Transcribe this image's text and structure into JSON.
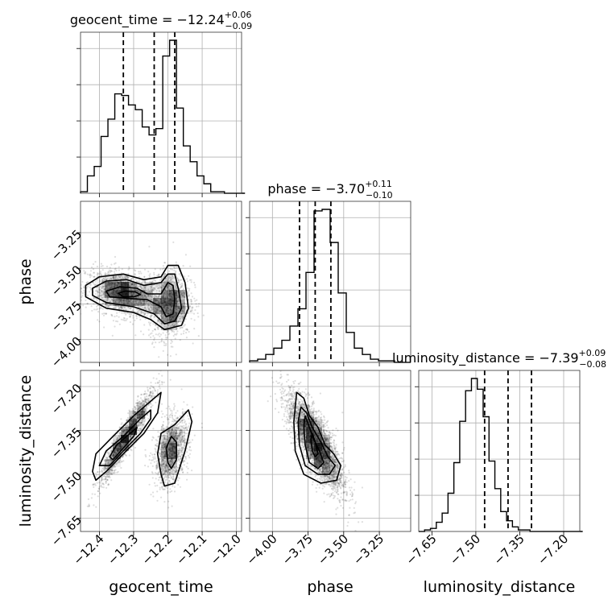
{
  "chart_data": {
    "type": "corner",
    "parameters": [
      {
        "name": "geocent_time",
        "axis_label": "geocent_time",
        "range": [
          -12.455,
          -11.985
        ],
        "ticks": [
          -12.4,
          -12.3,
          -12.2,
          -12.1,
          -12.0
        ],
        "tick_labels": [
          "−12.4",
          "−12.3",
          "−12.2",
          "−12.1",
          "−12.0"
        ],
        "title_main": "geocent_time = −12.24",
        "title_sup": "+0.06",
        "title_sub": "−0.09",
        "quantiles": [
          -12.33,
          -12.24,
          -12.18
        ],
        "hist_edges_start": -12.455,
        "hist_bin_width": 0.02,
        "hist_counts": [
          0.01,
          0.11,
          0.17,
          0.36,
          0.47,
          0.63,
          0.62,
          0.56,
          0.53,
          0.42,
          0.37,
          0.41,
          0.87,
          0.97,
          0.54,
          0.3,
          0.2,
          0.11,
          0.06,
          0.01,
          0.01,
          0.0,
          0.0,
          0.0
        ]
      },
      {
        "name": "phase",
        "axis_label": "phase",
        "range": [
          -4.16,
          -3.03
        ],
        "ticks": [
          -4.0,
          -3.75,
          -3.5,
          -3.25
        ],
        "tick_labels": [
          "−4.00",
          "−3.75",
          "−3.50",
          "−3.25"
        ],
        "title_main": "phase = −3.70",
        "title_sup": "+0.11",
        "title_sub": "−0.10",
        "quantiles": [
          -3.81,
          -3.7,
          -3.59
        ],
        "hist_edges_start": -4.16,
        "hist_bin_width": 0.0565,
        "hist_counts": [
          0.01,
          0.02,
          0.05,
          0.09,
          0.14,
          0.23,
          0.34,
          0.57,
          0.96,
          0.97,
          0.76,
          0.44,
          0.19,
          0.09,
          0.05,
          0.02,
          0.01,
          0.01,
          0.0,
          0.0
        ]
      },
      {
        "name": "luminosity_distance",
        "axis_label": "luminosity_distance",
        "range": [
          -7.695,
          -7.145
        ],
        "ticks": [
          -7.65,
          -7.5,
          -7.35,
          -7.2
        ],
        "tick_labels": [
          "−7.65",
          "−7.50",
          "−7.35",
          "−7.20"
        ],
        "title_main": "luminosity_distance = −7.39",
        "title_sup": "+0.09",
        "title_sub": "−0.08",
        "quantiles": [
          -7.47,
          -7.39,
          -7.31
        ],
        "hist_edges_start": -7.695,
        "hist_bin_width": 0.02,
        "hist_counts": [
          0.0,
          0.01,
          0.02,
          0.06,
          0.12,
          0.25,
          0.45,
          0.72,
          0.92,
          1.0,
          0.93,
          0.75,
          0.46,
          0.28,
          0.13,
          0.07,
          0.03,
          0.01,
          0.01,
          0.0,
          0.0,
          0.0,
          0.0,
          0.0,
          0.0,
          0.0,
          0.0,
          0.0
        ]
      }
    ],
    "pairs": [
      {
        "x": 0,
        "y": 1,
        "blobs": [
          {
            "mx": -12.33,
            "my": -3.68,
            "sx": 0.055,
            "sy": 0.08,
            "rho": -0.3,
            "weight": 0.55
          },
          {
            "mx": -12.195,
            "my": -3.75,
            "sx": 0.03,
            "sy": 0.12,
            "rho": 0.1,
            "weight": 0.45
          }
        ],
        "contours": [
          [
            [
              -12.44,
              -3.62
            ],
            [
              -12.4,
              -3.56
            ],
            [
              -12.33,
              -3.54
            ],
            [
              -12.27,
              -3.58
            ],
            [
              -12.22,
              -3.56
            ],
            [
              -12.2,
              -3.48
            ],
            [
              -12.17,
              -3.48
            ],
            [
              -12.15,
              -3.6
            ],
            [
              -12.14,
              -3.78
            ],
            [
              -12.16,
              -3.9
            ],
            [
              -12.21,
              -3.93
            ],
            [
              -12.25,
              -3.86
            ],
            [
              -12.3,
              -3.81
            ],
            [
              -12.38,
              -3.78
            ],
            [
              -12.44,
              -3.7
            ]
          ],
          [
            [
              -12.42,
              -3.64
            ],
            [
              -12.38,
              -3.59
            ],
            [
              -12.32,
              -3.58
            ],
            [
              -12.27,
              -3.62
            ],
            [
              -12.22,
              -3.6
            ],
            [
              -12.2,
              -3.54
            ],
            [
              -12.18,
              -3.54
            ],
            [
              -12.17,
              -3.64
            ],
            [
              -12.16,
              -3.78
            ],
            [
              -12.18,
              -3.87
            ],
            [
              -12.21,
              -3.89
            ],
            [
              -12.24,
              -3.82
            ],
            [
              -12.3,
              -3.77
            ],
            [
              -12.38,
              -3.74
            ],
            [
              -12.42,
              -3.69
            ]
          ],
          [
            [
              -12.38,
              -3.66
            ],
            [
              -12.34,
              -3.63
            ],
            [
              -12.29,
              -3.64
            ],
            [
              -12.26,
              -3.68
            ],
            [
              -12.22,
              -3.68
            ],
            [
              -12.2,
              -3.6
            ],
            [
              -12.185,
              -3.62
            ],
            [
              -12.18,
              -3.72
            ],
            [
              -12.185,
              -3.82
            ],
            [
              -12.205,
              -3.84
            ],
            [
              -12.22,
              -3.77
            ],
            [
              -12.26,
              -3.72
            ],
            [
              -12.32,
              -3.71
            ],
            [
              -12.37,
              -3.7
            ]
          ],
          [
            [
              -12.345,
              -3.675
            ],
            [
              -12.325,
              -3.66
            ],
            [
              -12.295,
              -3.665
            ],
            [
              -12.28,
              -3.685
            ],
            [
              -12.3,
              -3.7
            ],
            [
              -12.33,
              -3.7
            ]
          ]
        ]
      },
      {
        "x": 0,
        "y": 2,
        "blobs": [
          {
            "mx": -12.32,
            "my": -7.37,
            "sx": 0.04,
            "sy": 0.08,
            "rho": 0.94,
            "weight": 0.55
          },
          {
            "mx": -12.19,
            "my": -7.42,
            "sx": 0.025,
            "sy": 0.06,
            "rho": 0.35,
            "weight": 0.45
          }
        ],
        "contours": [
          [
            [
              -12.42,
              -7.49
            ],
            [
              -12.41,
              -7.43
            ],
            [
              -12.36,
              -7.37
            ],
            [
              -12.3,
              -7.3
            ],
            [
              -12.24,
              -7.24
            ],
            [
              -12.22,
              -7.22
            ],
            [
              -12.23,
              -7.29
            ],
            [
              -12.27,
              -7.36
            ],
            [
              -12.33,
              -7.43
            ],
            [
              -12.38,
              -7.49
            ],
            [
              -12.41,
              -7.52
            ]
          ],
          [
            [
              -12.22,
              -7.5
            ],
            [
              -12.23,
              -7.43
            ],
            [
              -12.22,
              -7.36
            ],
            [
              -12.18,
              -7.33
            ],
            [
              -12.14,
              -7.28
            ],
            [
              -12.13,
              -7.32
            ],
            [
              -12.15,
              -7.42
            ],
            [
              -12.18,
              -7.53
            ],
            [
              -12.21,
              -7.54
            ]
          ],
          [
            [
              -12.4,
              -7.47
            ],
            [
              -12.38,
              -7.42
            ],
            [
              -12.33,
              -7.37
            ],
            [
              -12.28,
              -7.31
            ],
            [
              -12.25,
              -7.28
            ],
            [
              -12.25,
              -7.31
            ],
            [
              -12.28,
              -7.36
            ],
            [
              -12.33,
              -7.42
            ],
            [
              -12.37,
              -7.47
            ]
          ],
          [
            [
              -12.2,
              -7.46
            ],
            [
              -12.205,
              -7.41
            ],
            [
              -12.19,
              -7.37
            ],
            [
              -12.175,
              -7.39
            ],
            [
              -12.175,
              -7.45
            ],
            [
              -12.19,
              -7.48
            ]
          ],
          [
            [
              -12.37,
              -7.44
            ],
            [
              -12.35,
              -7.4
            ],
            [
              -12.31,
              -7.36
            ],
            [
              -12.29,
              -7.34
            ],
            [
              -12.3,
              -7.37
            ],
            [
              -12.33,
              -7.41
            ],
            [
              -12.36,
              -7.45
            ]
          ]
        ]
      },
      {
        "x": 1,
        "y": 2,
        "blobs": [
          {
            "mx": -3.7,
            "my": -7.39,
            "sx": 0.1,
            "sy": 0.085,
            "rho": -0.78,
            "weight": 1.0
          }
        ],
        "contours": [
          [
            [
              -3.83,
              -7.22
            ],
            [
              -3.78,
              -7.24
            ],
            [
              -3.74,
              -7.3
            ],
            [
              -3.68,
              -7.34
            ],
            [
              -3.63,
              -7.4
            ],
            [
              -3.57,
              -7.43
            ],
            [
              -3.52,
              -7.47
            ],
            [
              -3.55,
              -7.52
            ],
            [
              -3.66,
              -7.53
            ],
            [
              -3.78,
              -7.5
            ],
            [
              -3.84,
              -7.42
            ],
            [
              -3.85,
              -7.32
            ]
          ],
          [
            [
              -3.8,
              -7.27
            ],
            [
              -3.76,
              -7.29
            ],
            [
              -3.72,
              -7.34
            ],
            [
              -3.66,
              -7.39
            ],
            [
              -3.61,
              -7.44
            ],
            [
              -3.56,
              -7.47
            ],
            [
              -3.6,
              -7.5
            ],
            [
              -3.68,
              -7.5
            ],
            [
              -3.77,
              -7.47
            ],
            [
              -3.81,
              -7.4
            ],
            [
              -3.82,
              -7.32
            ]
          ],
          [
            [
              -3.77,
              -7.3
            ],
            [
              -3.74,
              -7.34
            ],
            [
              -3.71,
              -7.38
            ],
            [
              -3.67,
              -7.42
            ],
            [
              -3.64,
              -7.46
            ],
            [
              -3.68,
              -7.48
            ],
            [
              -3.74,
              -7.46
            ],
            [
              -3.77,
              -7.4
            ],
            [
              -3.78,
              -7.34
            ]
          ],
          [
            [
              -3.72,
              -7.36
            ],
            [
              -3.7,
              -7.39
            ],
            [
              -3.68,
              -7.43
            ],
            [
              -3.7,
              -7.44
            ],
            [
              -3.72,
              -7.42
            ],
            [
              -3.73,
              -7.38
            ]
          ]
        ]
      }
    ]
  }
}
